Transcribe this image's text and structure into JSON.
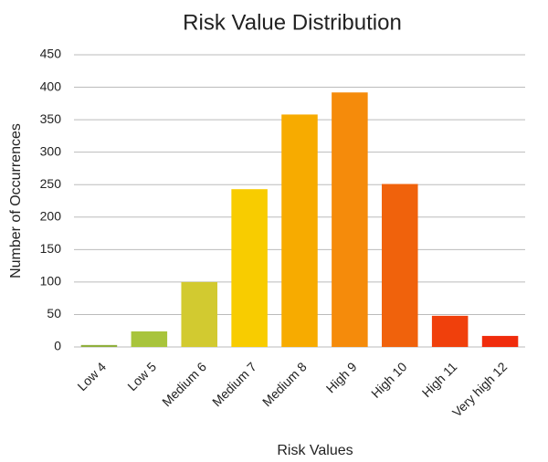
{
  "chart_data": {
    "type": "bar",
    "title": "Risk Value Distribution",
    "x_label": "Risk Values",
    "y_label": "Number of Occurrences",
    "categories": [
      "Low 4",
      "Low 5",
      "Medium 6",
      "Medium 7",
      "Medium 8",
      "High 9",
      "High 10",
      "High 11",
      "Very high 12"
    ],
    "values": [
      3,
      24,
      100,
      243,
      358,
      392,
      251,
      48,
      17
    ],
    "colors": [
      "#8faf3c",
      "#a8c43c",
      "#d2ca30",
      "#f8cc00",
      "#f7ab00",
      "#f58b0b",
      "#f0620c",
      "#f0400c",
      "#f02c0c"
    ],
    "ylim": [
      0,
      450
    ],
    "yticks": [
      0,
      50,
      100,
      150,
      200,
      250,
      300,
      350,
      400,
      450
    ],
    "grid": true
  }
}
